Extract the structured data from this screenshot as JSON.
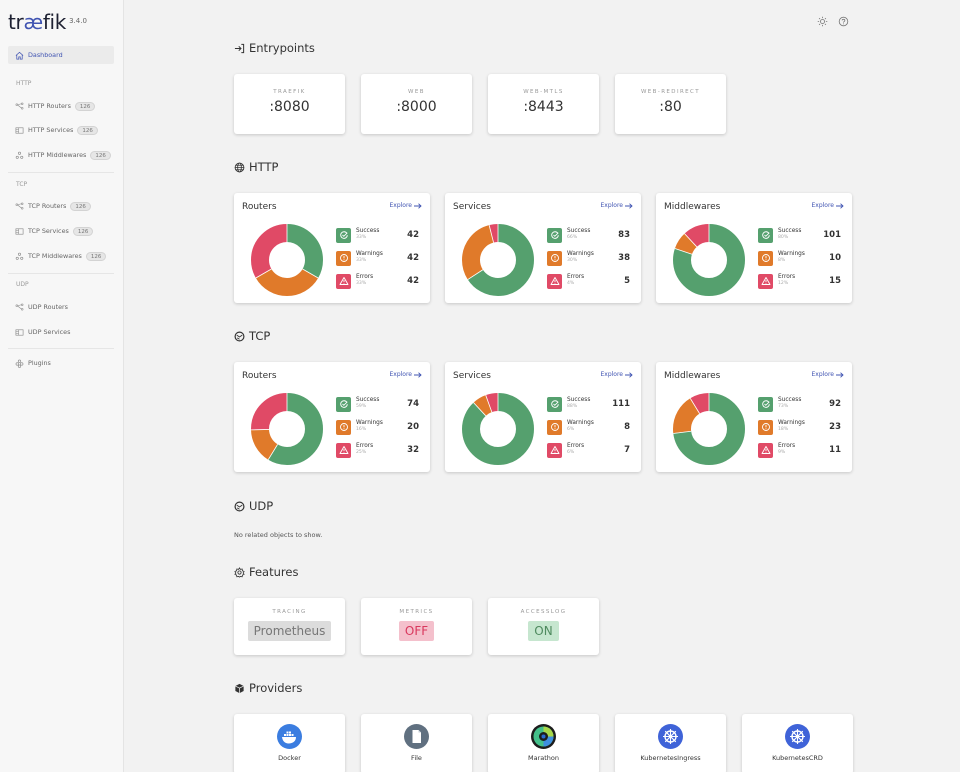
{
  "app": {
    "logo_prefix": "tr",
    "logo_ae": "æ",
    "logo_suffix": "fik",
    "version": "3.4.0"
  },
  "sidebar": {
    "dashboard": {
      "label": "Dashboard",
      "icon": "home-icon"
    },
    "sections": [
      {
        "title": "HTTP",
        "items": [
          {
            "label": "HTTP Routers",
            "count": "126",
            "icon": "routers-icon"
          },
          {
            "label": "HTTP Services",
            "count": "126",
            "icon": "services-icon"
          },
          {
            "label": "HTTP Middlewares",
            "count": "126",
            "icon": "middlewares-icon"
          }
        ]
      },
      {
        "title": "TCP",
        "items": [
          {
            "label": "TCP Routers",
            "count": "126",
            "icon": "routers-icon"
          },
          {
            "label": "TCP Services",
            "count": "126",
            "icon": "services-icon"
          },
          {
            "label": "TCP Middlewares",
            "count": "126",
            "icon": "middlewares-icon"
          }
        ]
      },
      {
        "title": "UDP",
        "items": [
          {
            "label": "UDP Routers",
            "icon": "routers-icon"
          },
          {
            "label": "UDP Services",
            "icon": "services-icon"
          }
        ]
      }
    ],
    "plugins": {
      "label": "Plugins",
      "icon": "plugins-icon"
    }
  },
  "topbar": {
    "theme_icon": "sun-icon",
    "help_icon": "help-icon"
  },
  "entrypoints": {
    "title": "Entrypoints",
    "items": [
      {
        "name": "TRAEFIK",
        "address": ":8080"
      },
      {
        "name": "WEB",
        "address": ":8000"
      },
      {
        "name": "WEB-MTLS",
        "address": ":8443"
      },
      {
        "name": "WEB-REDIRECT",
        "address": ":80"
      }
    ]
  },
  "labels": {
    "explore": "Explore",
    "success": "Success",
    "warnings": "Warnings",
    "errors": "Errors"
  },
  "colors": {
    "success": "#55a06e",
    "warnings": "#e07a2a",
    "errors": "#e04a66",
    "accent": "#4054b2"
  },
  "http": {
    "title": "HTTP",
    "cards": [
      {
        "title": "Routers",
        "success": 42,
        "success_pct": "33%",
        "warnings": 42,
        "warnings_pct": "33%",
        "errors": 42,
        "errors_pct": "33%"
      },
      {
        "title": "Services",
        "success": 83,
        "success_pct": "66%",
        "warnings": 38,
        "warnings_pct": "30%",
        "errors": 5,
        "errors_pct": "4%"
      },
      {
        "title": "Middlewares",
        "success": 101,
        "success_pct": "80%",
        "warnings": 10,
        "warnings_pct": "8%",
        "errors": 15,
        "errors_pct": "12%"
      }
    ]
  },
  "tcp": {
    "title": "TCP",
    "cards": [
      {
        "title": "Routers",
        "success": 74,
        "success_pct": "59%",
        "warnings": 20,
        "warnings_pct": "16%",
        "errors": 32,
        "errors_pct": "25%"
      },
      {
        "title": "Services",
        "success": 111,
        "success_pct": "88%",
        "warnings": 8,
        "warnings_pct": "6%",
        "errors": 7,
        "errors_pct": "6%"
      },
      {
        "title": "Middlewares",
        "success": 92,
        "success_pct": "73%",
        "warnings": 23,
        "warnings_pct": "18%",
        "errors": 11,
        "errors_pct": "9%"
      }
    ]
  },
  "udp": {
    "title": "UDP",
    "empty_text": "No related objects to show."
  },
  "features": {
    "title": "Features",
    "items": [
      {
        "name": "TRACING",
        "value": "Prometheus",
        "bg": "#dcdcdc",
        "fg": "#777777"
      },
      {
        "name": "METRICS",
        "value": "OFF",
        "bg": "#f4c0cc",
        "fg": "#d9385e"
      },
      {
        "name": "ACCESSLOG",
        "value": "ON",
        "bg": "#c6e6cf",
        "fg": "#4f8a5f"
      }
    ]
  },
  "providers": {
    "title": "Providers",
    "items": [
      {
        "name": "Docker",
        "icon": "docker-icon"
      },
      {
        "name": "File",
        "icon": "file-icon"
      },
      {
        "name": "Marathon",
        "icon": "marathon-icon"
      },
      {
        "name": "KubernetesIngress",
        "icon": "kubernetes-icon"
      },
      {
        "name": "KubernetesCRD",
        "icon": "kubernetes-icon"
      }
    ]
  }
}
